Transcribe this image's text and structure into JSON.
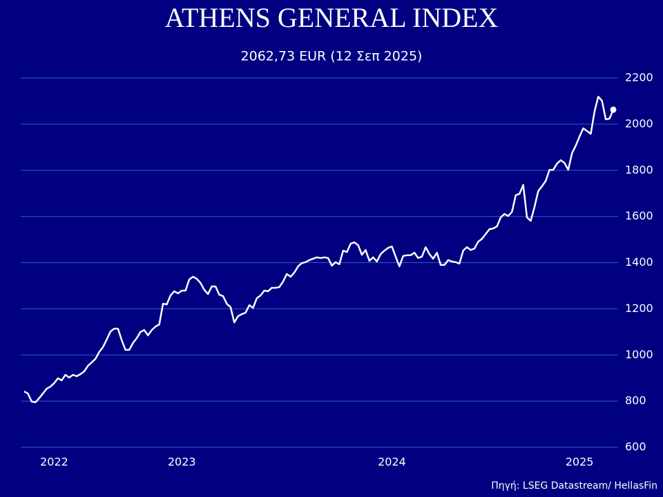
{
  "chart_data": {
    "type": "line",
    "title": "ATHENS GENERAL INDEX",
    "subtitle": "2062,73 EUR (12 Σεπ 2025)",
    "source": "Πηγή: LSEG Datastream/ HellasFin",
    "categories": [
      null,
      null,
      null,
      null,
      null,
      null,
      null,
      null,
      "2022",
      null,
      null,
      null,
      null,
      null,
      null,
      null,
      null,
      null,
      null,
      null,
      null,
      null,
      null,
      null,
      null,
      null,
      null,
      null,
      null,
      null,
      null,
      null,
      null,
      null,
      null,
      null,
      null,
      null,
      null,
      null,
      null,
      null,
      "2023",
      null,
      null,
      null,
      null,
      null,
      null,
      null,
      null,
      null,
      null,
      null,
      null,
      null,
      null,
      null,
      null,
      null,
      null,
      null,
      null,
      null,
      null,
      null,
      null,
      null,
      null,
      null,
      null,
      null,
      null,
      null,
      null,
      null,
      null,
      null,
      null,
      null,
      null,
      null,
      null,
      null,
      null,
      null,
      null,
      null,
      null,
      null,
      null,
      null,
      null,
      null,
      null,
      null,
      null,
      null,
      "2024",
      null,
      null,
      null,
      null,
      null,
      null,
      null,
      null,
      null,
      null,
      null,
      null,
      null,
      null,
      null,
      null,
      null,
      null,
      null,
      null,
      null,
      null,
      null,
      null,
      null,
      null,
      null,
      null,
      null,
      null,
      null,
      null,
      null,
      null,
      null,
      null,
      null,
      null,
      null,
      null,
      null,
      null,
      null,
      null,
      null,
      null,
      null,
      null,
      null,
      "2025",
      null,
      null,
      null,
      null,
      null,
      null,
      null,
      null,
      null
    ],
    "series": [
      {
        "color": "#ffffff",
        "values": [
          842,
          833,
          798,
          795,
          813,
          833,
          854,
          863,
          878,
          899,
          890,
          914,
          902,
          914,
          908,
          917,
          929,
          953,
          968,
          983,
          1013,
          1034,
          1067,
          1102,
          1114,
          1114,
          1064,
          1022,
          1022,
          1052,
          1073,
          1100,
          1108,
          1085,
          1108,
          1123,
          1132,
          1222,
          1219,
          1258,
          1276,
          1267,
          1279,
          1279,
          1327,
          1339,
          1330,
          1312,
          1282,
          1264,
          1297,
          1297,
          1261,
          1255,
          1222,
          1207,
          1141,
          1168,
          1177,
          1183,
          1216,
          1204,
          1246,
          1258,
          1279,
          1276,
          1291,
          1291,
          1294,
          1318,
          1351,
          1339,
          1357,
          1384,
          1398,
          1402,
          1411,
          1417,
          1423,
          1420,
          1423,
          1420,
          1387,
          1402,
          1393,
          1452,
          1446,
          1482,
          1488,
          1476,
          1434,
          1455,
          1408,
          1423,
          1405,
          1437,
          1452,
          1464,
          1470,
          1426,
          1384,
          1429,
          1432,
          1432,
          1443,
          1420,
          1426,
          1467,
          1437,
          1417,
          1443,
          1390,
          1390,
          1411,
          1405,
          1402,
          1396,
          1452,
          1467,
          1455,
          1461,
          1491,
          1503,
          1524,
          1545,
          1548,
          1557,
          1596,
          1611,
          1602,
          1620,
          1692,
          1698,
          1737,
          1596,
          1581,
          1641,
          1710,
          1731,
          1754,
          1802,
          1802,
          1829,
          1844,
          1832,
          1802,
          1874,
          1907,
          1946,
          1982,
          1970,
          1958,
          2054,
          2119,
          2101,
          2021,
          2024,
          2062.73
        ]
      }
    ],
    "ylim": [
      600,
      2200
    ],
    "yticks": [
      600,
      800,
      1000,
      1200,
      1400,
      1600,
      1800,
      2000,
      2200
    ],
    "grid": true,
    "grid_color": "#2a5bd6"
  }
}
